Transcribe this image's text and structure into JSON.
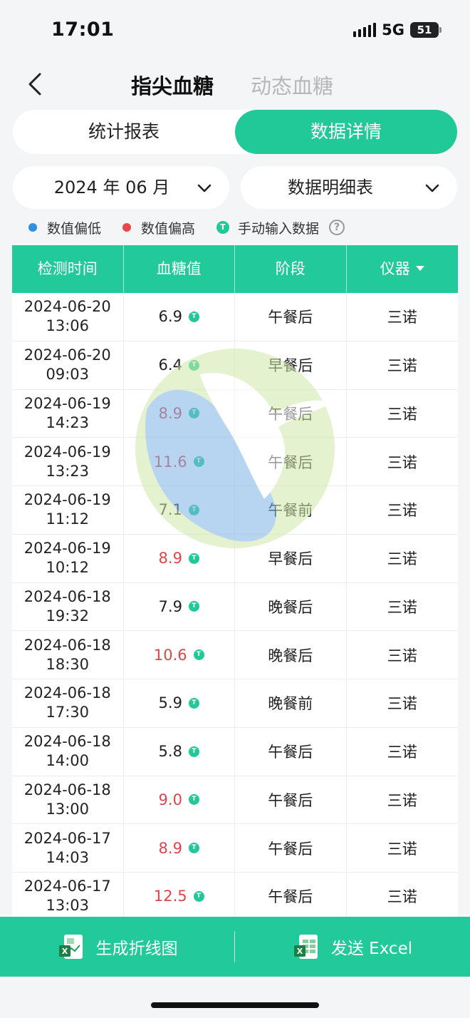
{
  "status_bar": {
    "time": "17:01",
    "network": "5G",
    "battery": "51"
  },
  "nav": {
    "tabs": [
      {
        "label": "指尖血糖",
        "active": true
      },
      {
        "label": "动态血糖",
        "active": false
      }
    ]
  },
  "segmented": {
    "left_label": "统计报表",
    "right_label": "数据详情",
    "selected": "数据详情"
  },
  "selectors": {
    "month": "2024 年 06 月",
    "view": "数据明细表"
  },
  "legend": {
    "low": {
      "label": "数值偏低",
      "color": "#2f8fe0"
    },
    "high": {
      "label": "数值偏高",
      "color": "#e8474b"
    },
    "manual": {
      "label": "手动输入数据",
      "badge": "T",
      "color": "#20c997"
    },
    "help": "?"
  },
  "table": {
    "headers": [
      "检测时间",
      "血糖值",
      "阶段",
      "仪器"
    ],
    "badge": "T",
    "rows": [
      {
        "date": "2024-06-20",
        "time": "13:06",
        "value": "6.9",
        "status": "normal",
        "stage": "午餐后",
        "device": "三诺"
      },
      {
        "date": "2024-06-20",
        "time": "09:03",
        "value": "6.4",
        "status": "normal",
        "stage": "早餐后",
        "device": "三诺"
      },
      {
        "date": "2024-06-19",
        "time": "14:23",
        "value": "8.9",
        "status": "high",
        "stage": "午餐后",
        "device": "三诺"
      },
      {
        "date": "2024-06-19",
        "time": "13:23",
        "value": "11.6",
        "status": "high",
        "stage": "午餐后",
        "device": "三诺"
      },
      {
        "date": "2024-06-19",
        "time": "11:12",
        "value": "7.1",
        "status": "normal",
        "stage": "午餐前",
        "device": "三诺"
      },
      {
        "date": "2024-06-19",
        "time": "10:12",
        "value": "8.9",
        "status": "high",
        "stage": "早餐后",
        "device": "三诺"
      },
      {
        "date": "2024-06-18",
        "time": "19:32",
        "value": "7.9",
        "status": "normal",
        "stage": "晚餐后",
        "device": "三诺"
      },
      {
        "date": "2024-06-18",
        "time": "18:30",
        "value": "10.6",
        "status": "high",
        "stage": "晚餐后",
        "device": "三诺"
      },
      {
        "date": "2024-06-18",
        "time": "17:30",
        "value": "5.9",
        "status": "normal",
        "stage": "晚餐前",
        "device": "三诺"
      },
      {
        "date": "2024-06-18",
        "time": "14:00",
        "value": "5.8",
        "status": "normal",
        "stage": "午餐后",
        "device": "三诺"
      },
      {
        "date": "2024-06-18",
        "time": "13:00",
        "value": "9.0",
        "status": "high",
        "stage": "午餐后",
        "device": "三诺"
      },
      {
        "date": "2024-06-17",
        "time": "14:03",
        "value": "8.9",
        "status": "high",
        "stage": "午餐后",
        "device": "三诺"
      },
      {
        "date": "2024-06-17",
        "time": "13:03",
        "value": "12.5",
        "status": "high",
        "stage": "午餐后",
        "device": "三诺"
      }
    ]
  },
  "bottom_bar": {
    "chart_label": "生成折线图",
    "excel_label": "发送 Excel"
  }
}
